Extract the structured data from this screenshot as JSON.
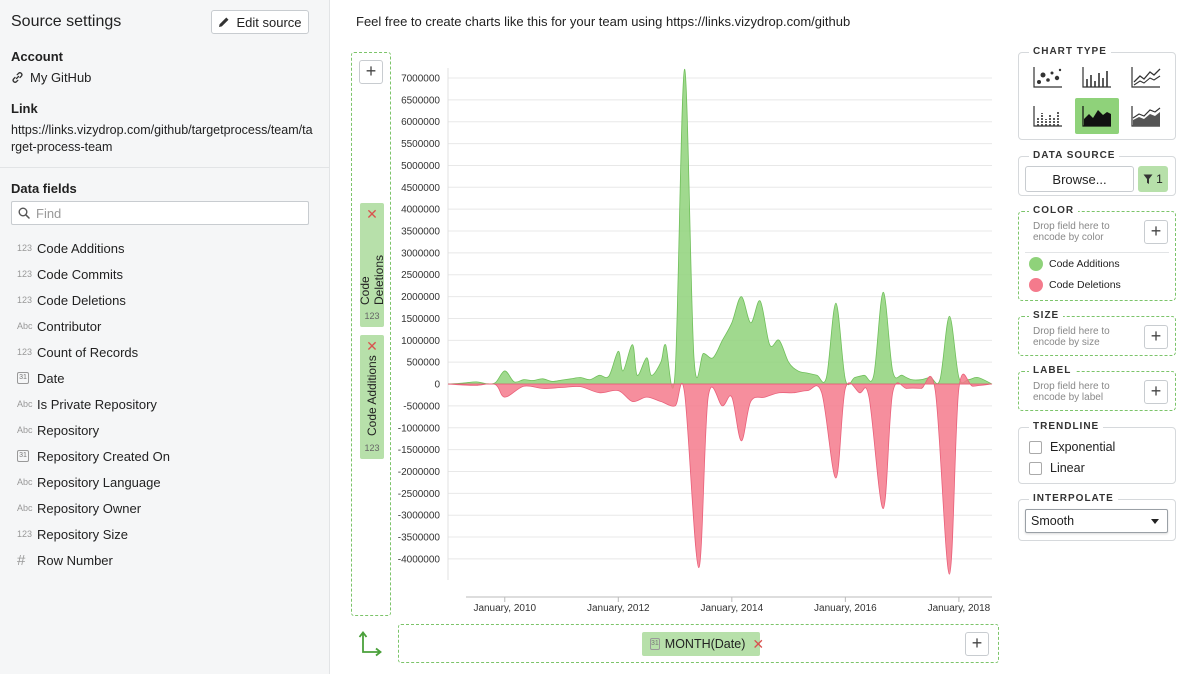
{
  "sidebar": {
    "title": "Source settings",
    "edit_label": "Edit source",
    "account_label": "Account",
    "account_value": "My GitHub",
    "link_label": "Link",
    "link_value": "https://links.vizydrop.com/github/targetprocess/team/target-process-team",
    "fields_label": "Data fields",
    "search_placeholder": "Find",
    "fields": [
      {
        "type": "123",
        "label": "Code Additions"
      },
      {
        "type": "123",
        "label": "Code Commits"
      },
      {
        "type": "123",
        "label": "Code Deletions"
      },
      {
        "type": "Abc",
        "label": "Contributor"
      },
      {
        "type": "123",
        "label": "Count of Records"
      },
      {
        "type": "31",
        "label": "Date"
      },
      {
        "type": "Abc",
        "label": "Is Private Repository"
      },
      {
        "type": "Abc",
        "label": "Repository"
      },
      {
        "type": "31",
        "label": "Repository Created On"
      },
      {
        "type": "Abc",
        "label": "Repository Language"
      },
      {
        "type": "Abc",
        "label": "Repository Owner"
      },
      {
        "type": "123",
        "label": "Repository Size"
      },
      {
        "type": "#",
        "label": "Row Number"
      }
    ]
  },
  "header": {
    "note": "Feel free to create charts like this for your team using https://links.vizydrop.com/github"
  },
  "y_axis": {
    "pills": [
      {
        "label": "Code Deletions",
        "type": "123"
      },
      {
        "label": "Code Additions",
        "type": "123"
      }
    ],
    "add_label": "+"
  },
  "x_axis": {
    "pill_label": "MONTH(Date)",
    "pill_type": "31",
    "add_label": "+"
  },
  "right_panel": {
    "chart_type_title": "CHART TYPE",
    "data_source_title": "DATA SOURCE",
    "browse_label": "Browse...",
    "filter_count": "1",
    "color_title": "COLOR",
    "color_hint": "Drop field here to encode by color",
    "size_title": "SIZE",
    "size_hint": "Drop field here to encode by size",
    "label_title": "LABEL",
    "label_hint": "Drop field here to encode by label",
    "trendline_title": "TRENDLINE",
    "trend_options": [
      "Exponential",
      "Linear"
    ],
    "interpolate_title": "INTERPOLATE",
    "interpolate_value": "Smooth",
    "chart_types": [
      "scatter",
      "bar",
      "line",
      "bar-dotted",
      "area",
      "area-stacked"
    ],
    "selected_chart_type": "area"
  },
  "colors": {
    "additions": "#8fd27a",
    "deletions": "#f47a8c",
    "accent": "#7cc46a"
  },
  "chart_data": {
    "type": "area",
    "xlabel": "",
    "ylabel": "",
    "x_ticks": [
      "January, 2010",
      "January, 2012",
      "January, 2014",
      "January, 2016",
      "January, 2018"
    ],
    "y_ticks": [
      7000000,
      6500000,
      6000000,
      5500000,
      5000000,
      4500000,
      4000000,
      3500000,
      3000000,
      2500000,
      2000000,
      1500000,
      1000000,
      500000,
      0,
      -500000,
      -1000000,
      -1500000,
      -2000000,
      -2500000,
      -3000000,
      -3500000,
      -4000000
    ],
    "ylim": [
      -4300000,
      7300000
    ],
    "xlim": [
      "2009-01",
      "2018-08"
    ],
    "legend": [
      {
        "name": "Code Additions",
        "color": "#8fd27a"
      },
      {
        "name": "Code Deletions",
        "color": "#f47a8c"
      }
    ],
    "series": [
      {
        "name": "Code Additions",
        "points": [
          [
            "2009-01",
            0
          ],
          [
            "2009-04",
            20000
          ],
          [
            "2009-07",
            50000
          ],
          [
            "2009-09",
            10000
          ],
          [
            "2009-11",
            30000
          ],
          [
            "2010-01",
            300000
          ],
          [
            "2010-03",
            50000
          ],
          [
            "2010-05",
            100000
          ],
          [
            "2010-07",
            80000
          ],
          [
            "2010-09",
            120000
          ],
          [
            "2010-11",
            60000
          ],
          [
            "2011-01",
            90000
          ],
          [
            "2011-03",
            120000
          ],
          [
            "2011-05",
            150000
          ],
          [
            "2011-07",
            100000
          ],
          [
            "2011-09",
            200000
          ],
          [
            "2011-11",
            180000
          ],
          [
            "2012-01",
            750000
          ],
          [
            "2012-02",
            300000
          ],
          [
            "2012-04",
            900000
          ],
          [
            "2012-05",
            200000
          ],
          [
            "2012-07",
            600000
          ],
          [
            "2012-08",
            200000
          ],
          [
            "2012-10",
            500000
          ],
          [
            "2012-11",
            900000
          ],
          [
            "2013-01",
            250000
          ],
          [
            "2013-03",
            7200000
          ],
          [
            "2013-05",
            600000
          ],
          [
            "2013-07",
            700000
          ],
          [
            "2013-09",
            600000
          ],
          [
            "2013-11",
            1000000
          ],
          [
            "2014-01",
            1400000
          ],
          [
            "2014-03",
            2000000
          ],
          [
            "2014-05",
            1400000
          ],
          [
            "2014-07",
            1900000
          ],
          [
            "2014-09",
            900000
          ],
          [
            "2014-11",
            1000000
          ],
          [
            "2015-01",
            500000
          ],
          [
            "2015-03",
            300000
          ],
          [
            "2015-05",
            250000
          ],
          [
            "2015-07",
            200000
          ],
          [
            "2015-09",
            150000
          ],
          [
            "2015-11",
            1850000
          ],
          [
            "2016-01",
            100000
          ],
          [
            "2016-03",
            150000
          ],
          [
            "2016-05",
            200000
          ],
          [
            "2016-07",
            200000
          ],
          [
            "2016-09",
            2100000
          ],
          [
            "2016-11",
            300000
          ],
          [
            "2017-01",
            200000
          ],
          [
            "2017-03",
            100000
          ],
          [
            "2017-05",
            100000
          ],
          [
            "2017-07",
            150000
          ],
          [
            "2017-09",
            100000
          ],
          [
            "2017-11",
            1550000
          ],
          [
            "2018-01",
            150000
          ],
          [
            "2018-03",
            100000
          ],
          [
            "2018-05",
            150000
          ],
          [
            "2018-08",
            0
          ]
        ]
      },
      {
        "name": "Code Deletions",
        "points": [
          [
            "2009-01",
            0
          ],
          [
            "2009-04",
            -20000
          ],
          [
            "2009-07",
            -30000
          ],
          [
            "2009-11",
            -10000
          ],
          [
            "2010-01",
            -300000
          ],
          [
            "2010-05",
            -50000
          ],
          [
            "2010-09",
            -100000
          ],
          [
            "2011-01",
            -80000
          ],
          [
            "2011-05",
            -60000
          ],
          [
            "2011-09",
            -200000
          ],
          [
            "2012-01",
            -150000
          ],
          [
            "2012-04",
            -400000
          ],
          [
            "2012-07",
            -300000
          ],
          [
            "2012-10",
            -400000
          ],
          [
            "2013-01",
            -500000
          ],
          [
            "2013-03",
            -200000
          ],
          [
            "2013-06",
            -4200000
          ],
          [
            "2013-08",
            -300000
          ],
          [
            "2013-11",
            -500000
          ],
          [
            "2014-01",
            -300000
          ],
          [
            "2014-03",
            -1300000
          ],
          [
            "2014-05",
            -400000
          ],
          [
            "2014-08",
            -300000
          ],
          [
            "2014-11",
            -200000
          ],
          [
            "2015-02",
            -200000
          ],
          [
            "2015-05",
            -150000
          ],
          [
            "2015-08",
            -200000
          ],
          [
            "2015-11",
            -2150000
          ],
          [
            "2016-01",
            -100000
          ],
          [
            "2016-04",
            -200000
          ],
          [
            "2016-06",
            -300000
          ],
          [
            "2016-09",
            -2850000
          ],
          [
            "2016-11",
            -200000
          ],
          [
            "2017-02",
            -100000
          ],
          [
            "2017-05",
            -100000
          ],
          [
            "2017-08",
            -150000
          ],
          [
            "2017-11",
            -4350000
          ],
          [
            "2018-01",
            -100000
          ],
          [
            "2018-04",
            -50000
          ],
          [
            "2018-08",
            0
          ]
        ]
      }
    ]
  }
}
